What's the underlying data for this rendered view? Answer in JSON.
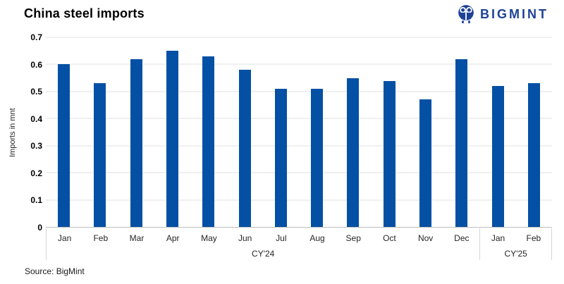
{
  "header": {
    "title": "China steel imports",
    "logo_text": "BIGMINT"
  },
  "footer": {
    "source": "Source: BigMint"
  },
  "colors": {
    "bar": "#0450a4",
    "logo": "#1e4296",
    "gridline": "#e2e2e2",
    "axis_box": "#d6d6d6"
  },
  "chart_data": {
    "type": "bar",
    "title": "China steel imports",
    "xlabel": "",
    "ylabel": "Imports in mnt",
    "ylim": [
      0,
      0.7
    ],
    "ytick_step": 0.1,
    "grid": true,
    "legend_position": "none",
    "bar_color": "#0450a4",
    "groups": [
      {
        "label": "CY'24",
        "categories": [
          "Jan",
          "Feb",
          "Mar",
          "Apr",
          "May",
          "Jun",
          "Jul",
          "Aug",
          "Sep",
          "Oct",
          "Nov",
          "Dec"
        ],
        "values": [
          0.6,
          0.53,
          0.62,
          0.65,
          0.63,
          0.58,
          0.51,
          0.51,
          0.55,
          0.54,
          0.47,
          0.62
        ]
      },
      {
        "label": "CY'25",
        "categories": [
          "Jan",
          "Feb"
        ],
        "values": [
          0.52,
          0.53
        ]
      }
    ]
  }
}
